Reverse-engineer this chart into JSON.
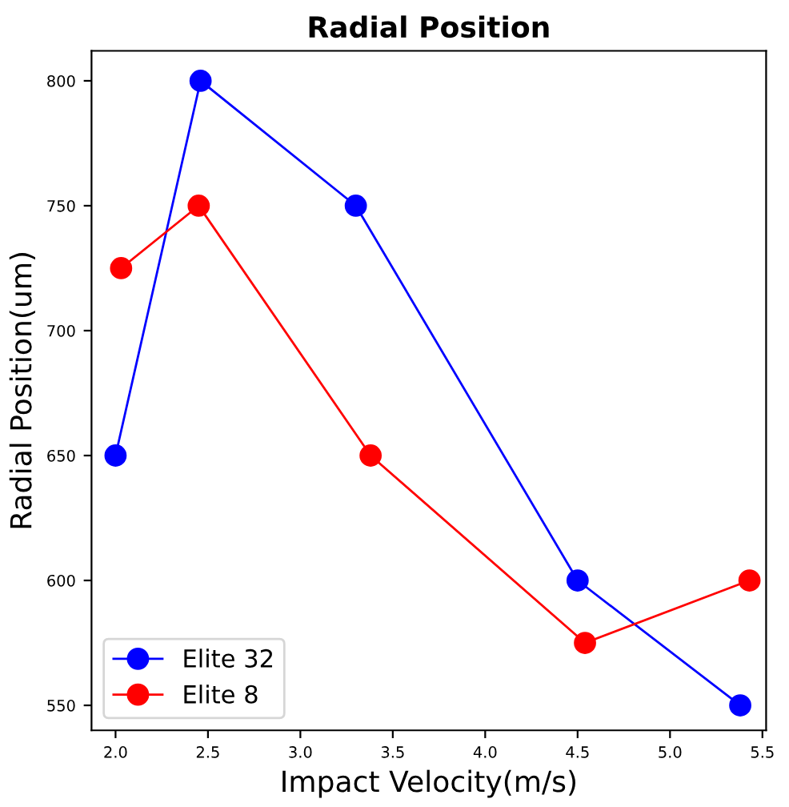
{
  "chart_data": {
    "type": "line",
    "title": "Radial Position",
    "xlabel": "Impact Velocity(m/s)",
    "ylabel": "Radial Position(um)",
    "xlim": [
      1.87,
      5.52
    ],
    "xticks": [
      {
        "value": 2.0,
        "label": "2.0"
      },
      {
        "value": 2.5,
        "label": "2.5"
      },
      {
        "value": 3.0,
        "label": "3.0"
      },
      {
        "value": 3.5,
        "label": "3.5"
      },
      {
        "value": 4.0,
        "label": "4.0"
      },
      {
        "value": 4.5,
        "label": "4.5"
      },
      {
        "value": 5.0,
        "label": "5.0"
      },
      {
        "value": 5.5,
        "label": "5.5"
      }
    ],
    "ylim": [
      540,
      812
    ],
    "yticks": [
      550,
      600,
      650,
      700,
      750,
      800
    ],
    "series": [
      {
        "name": "Elite 32",
        "color": "#0000ff",
        "x": [
          2.0,
          2.46,
          3.3,
          4.5,
          5.38
        ],
        "values": [
          650,
          800,
          750,
          600,
          550
        ]
      },
      {
        "name": "Elite 8",
        "color": "#ff0000",
        "x": [
          2.03,
          2.45,
          3.38,
          4.54,
          5.43
        ],
        "values": [
          725,
          750,
          650,
          575,
          600
        ]
      }
    ],
    "marker": "circle",
    "line_style": "solid",
    "grid": false,
    "legend": "bottom left"
  }
}
